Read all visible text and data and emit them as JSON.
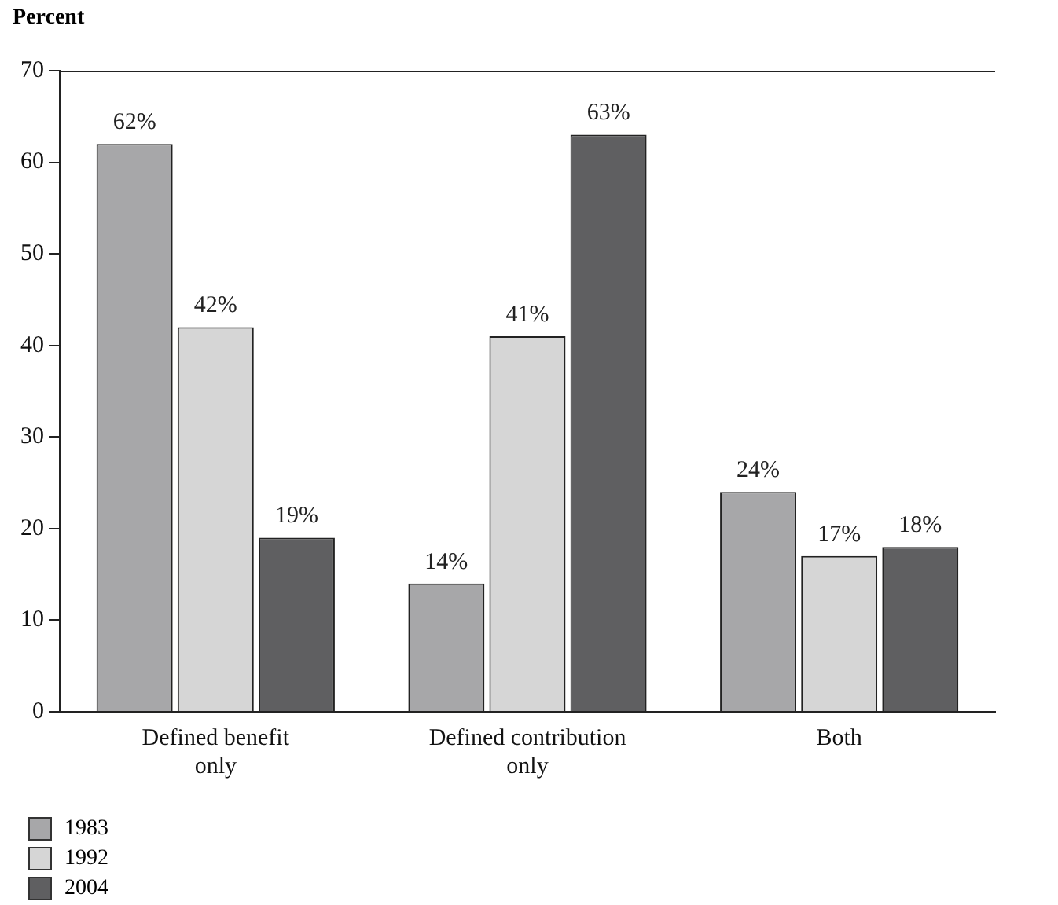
{
  "chart_data": {
    "type": "bar",
    "ylabel": "Percent",
    "categories": [
      "Defined benefit only",
      "Defined contribution only",
      "Both"
    ],
    "series": [
      {
        "name": "1983",
        "color": "#a7a7a9",
        "values": [
          62,
          14,
          24
        ],
        "value_labels": [
          "62%",
          "14%",
          "24%"
        ]
      },
      {
        "name": "1992",
        "color": "#d6d6d6",
        "values": [
          42,
          41,
          17
        ],
        "value_labels": [
          "42%",
          "41%",
          "17%"
        ]
      },
      {
        "name": "2004",
        "color": "#5f5f61",
        "values": [
          19,
          63,
          18
        ],
        "value_labels": [
          "19%",
          "63%",
          "18%"
        ]
      }
    ],
    "ylim": [
      0,
      70
    ],
    "yticks": [
      0,
      10,
      20,
      30,
      40,
      50,
      60,
      70
    ],
    "grid": false,
    "legend": "bottom left"
  }
}
